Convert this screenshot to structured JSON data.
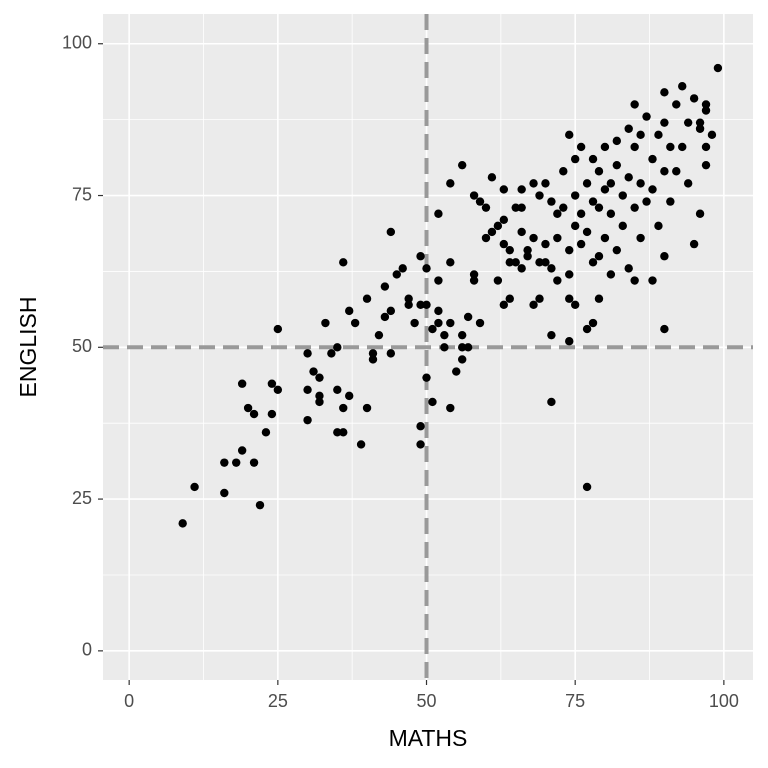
{
  "chart_data": {
    "type": "scatter",
    "x_label": "MATHS",
    "y_label": "ENGLISH",
    "xlim": [
      -4.4,
      104.9
    ],
    "ylim": [
      -4.8,
      104.9
    ],
    "xticks": [
      0,
      25,
      50,
      75,
      100
    ],
    "yticks": [
      0,
      25,
      50,
      75,
      100
    ],
    "grid": true,
    "color": "#000000",
    "vline": 50,
    "hline": 50,
    "reference_color": "#999999",
    "x": [
      9,
      11,
      16,
      16,
      18,
      19,
      19,
      20,
      21,
      21,
      22,
      23,
      24,
      24,
      25,
      25,
      30,
      30,
      30,
      31,
      32,
      32,
      32,
      33,
      34,
      35,
      35,
      35,
      36,
      36,
      36,
      37,
      37,
      38,
      39,
      40,
      40,
      41,
      41,
      42,
      43,
      43,
      44,
      44,
      44,
      45,
      46,
      47,
      47,
      48,
      49,
      49,
      49,
      49,
      50,
      50,
      50,
      51,
      51,
      52,
      52,
      52,
      52,
      53,
      53,
      54,
      54,
      54,
      54,
      55,
      56,
      56,
      56,
      56,
      57,
      57,
      58,
      58,
      58,
      59,
      59,
      60,
      60,
      61,
      61,
      62,
      62,
      63,
      63,
      63,
      63,
      64,
      64,
      64,
      65,
      65,
      66,
      66,
      66,
      66,
      67,
      67,
      68,
      68,
      68,
      69,
      69,
      69,
      70,
      70,
      70,
      71,
      71,
      71,
      71,
      72,
      72,
      72,
      73,
      73,
      74,
      74,
      74,
      74,
      74,
      75,
      75,
      75,
      75,
      76,
      76,
      76,
      77,
      77,
      77,
      77,
      78,
      78,
      78,
      78,
      79,
      79,
      79,
      79,
      80,
      80,
      80,
      81,
      81,
      81,
      82,
      82,
      82,
      83,
      83,
      84,
      84,
      84,
      85,
      85,
      85,
      85,
      86,
      86,
      86,
      87,
      87,
      88,
      88,
      88,
      89,
      89,
      90,
      90,
      90,
      90,
      90,
      91,
      91,
      92,
      92,
      93,
      93,
      94,
      94,
      95,
      95,
      96,
      96,
      97,
      97,
      97,
      98,
      99,
      97,
      96
    ],
    "values": [
      21,
      27,
      26,
      31,
      31,
      44,
      33,
      40,
      39,
      31,
      24,
      36,
      39,
      44,
      43,
      53,
      49,
      43,
      38,
      46,
      42,
      45,
      41,
      54,
      49,
      50,
      36,
      43,
      64,
      36,
      40,
      42,
      56,
      54,
      34,
      40,
      58,
      49,
      48,
      52,
      60,
      55,
      69,
      49,
      56,
      62,
      63,
      58,
      57,
      54,
      37,
      34,
      57,
      65,
      45,
      63,
      57,
      41,
      53,
      61,
      72,
      56,
      54,
      52,
      50,
      40,
      64,
      54,
      77,
      46,
      80,
      50,
      52,
      48,
      55,
      50,
      61,
      62,
      75,
      54,
      74,
      68,
      73,
      78,
      69,
      70,
      61,
      67,
      57,
      71,
      76,
      64,
      58,
      66,
      73,
      64,
      63,
      73,
      69,
      76,
      65,
      66,
      57,
      68,
      77,
      58,
      64,
      75,
      77,
      64,
      67,
      52,
      41,
      63,
      74,
      68,
      61,
      72,
      79,
      73,
      66,
      51,
      85,
      58,
      62,
      70,
      81,
      57,
      75,
      83,
      72,
      67,
      27,
      53,
      77,
      69,
      81,
      64,
      74,
      54,
      79,
      58,
      73,
      65,
      83,
      76,
      68,
      77,
      62,
      72,
      80,
      66,
      84,
      75,
      70,
      78,
      63,
      86,
      83,
      61,
      73,
      90,
      85,
      77,
      68,
      88,
      74,
      81,
      61,
      76,
      85,
      70,
      87,
      79,
      65,
      53,
      92,
      83,
      74,
      90,
      79,
      93,
      83,
      77,
      87,
      91,
      67,
      72,
      86,
      89,
      80,
      83,
      85,
      96,
      90,
      87
    ]
  }
}
